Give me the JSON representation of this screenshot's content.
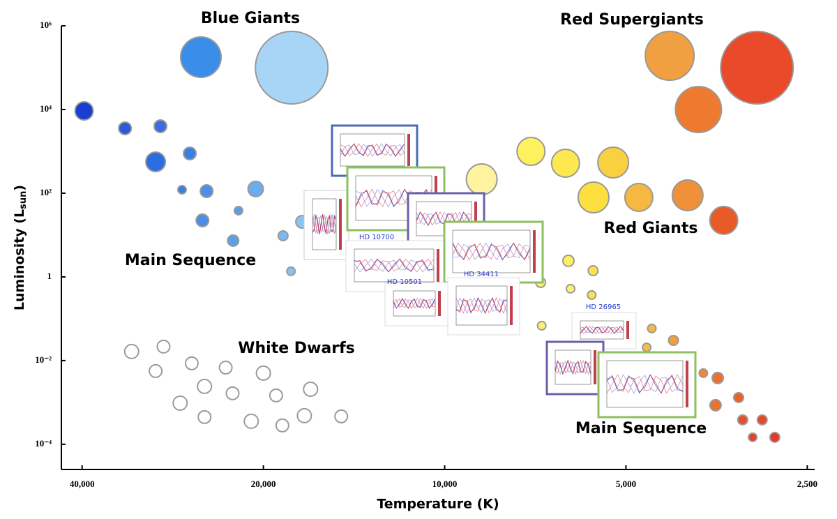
{
  "chart_data": {
    "type": "scatter",
    "x_label": "Temperature (K)",
    "y_label": {
      "text": "Luminosity (L",
      "subscript": "sun",
      "close": ")"
    },
    "xlim": [
      43300,
      2430
    ],
    "ylim": [
      2.5e-05,
      1000000
    ],
    "log_x": true,
    "log_y": true,
    "xticks": [
      {
        "value": 40000,
        "label": "40,000"
      },
      {
        "value": 20000,
        "label": "20,000"
      },
      {
        "value": 10000,
        "label": "10,000"
      },
      {
        "value": 5000,
        "label": "5,000"
      },
      {
        "value": 2500,
        "label": "2,500"
      }
    ],
    "yticks": [
      {
        "value": 1000000,
        "label": "10⁶"
      },
      {
        "value": 10000,
        "label": "10⁴"
      },
      {
        "value": 100,
        "label": "10²"
      },
      1,
      {
        "value": 0.01,
        "label": "10⁻²"
      },
      {
        "value": 0.0001,
        "label": "10⁻⁴"
      }
    ],
    "series": [
      {
        "x": [
          25400,
          17950
        ],
        "y": [
          178000,
          100000
        ],
        "sizes": [
          29,
          52
        ],
        "colors": [
          "#3a8de8",
          "#a8d4f6"
        ]
      },
      {
        "x": [
          4230,
          3030,
          3790
        ],
        "y": [
          192000,
          100000,
          10000
        ],
        "sizes": [
          35,
          52,
          33
        ],
        "colors": [
          "#f0a040",
          "#e84a2a",
          "#ee7a30"
        ]
      },
      {
        "x": [
          39700,
          33950,
          29650,
          30200,
          26500,
          27300,
          24850,
          20600,
          22000,
          25250,
          22450,
          18550,
          18000,
          17250
        ],
        "y": [
          9260,
          3550,
          3980,
          562,
          891,
          121,
          112,
          126,
          38.3,
          22.4,
          7.36,
          9.62,
          1.36,
          20.7
        ],
        "sizes": [
          13,
          9,
          9,
          14,
          9,
          6,
          9,
          11,
          6,
          9,
          8,
          7,
          6,
          9
        ],
        "colors": [
          "#1a3fd0",
          "#2a5ad8",
          "#3a6ee0",
          "#2a6ee0",
          "#3a80e0",
          "#3a7ee0",
          "#4a90e8",
          "#6aaef0",
          "#5a9ee8",
          "#4a90e8",
          "#5aa0e8",
          "#7ab8f0",
          "#8ac0f0",
          "#8ac4f0"
        ]
      },
      {
        "x": [
          7190,
          6300,
          8680,
          5250,
          5660,
          4760,
          3950,
          3440
        ],
        "y": [
          1000,
          521,
          215,
          541,
          79.4,
          79.4,
          89.1,
          22.4
        ],
        "sizes": [
          20,
          20,
          22,
          22,
          22,
          20,
          22,
          20
        ],
        "colors": [
          "#fff060",
          "#fde850",
          "#fff3a0",
          "#f8d040",
          "#fde040",
          "#f5b840",
          "#f09038",
          "#e85a28"
        ]
      },
      {
        "x": [
          6230,
          5670,
          6930,
          6180,
          5700,
          6900,
          4530,
          4170,
          4620,
          3720,
          3520,
          3250,
          3550,
          3200,
          2970,
          3080,
          2830
        ],
        "y": [
          2.42,
          1.41,
          0.736,
          0.521,
          0.369,
          0.0681,
          0.0585,
          0.0304,
          0.0207,
          0.00501,
          0.00383,
          0.00131,
          0.000858,
          0.000383,
          0.000383,
          0.000147,
          0.000147
        ],
        "sizes": [
          8,
          7,
          7,
          6,
          6,
          6,
          6,
          7,
          6,
          6,
          8,
          7,
          8,
          7,
          7,
          6,
          7
        ],
        "colors": [
          "#fff060",
          "#fde050",
          "#fff070",
          "#fff070",
          "#fde050",
          "#fff070",
          "#f5b840",
          "#f0a040",
          "#f5c040",
          "#f08838",
          "#ee7030",
          "#ea6028",
          "#ee7030",
          "#e85028",
          "#e84828",
          "#e64028",
          "#e43828"
        ]
      },
      {
        "x": [
          33100,
          29300,
          26300,
          30200,
          23100,
          20000,
          25050,
          22500,
          16700,
          27500,
          19050,
          25050,
          20950,
          18600,
          17100,
          14850
        ],
        "y": [
          0.0165,
          0.0216,
          0.00858,
          0.00562,
          0.00681,
          0.00501,
          0.00242,
          0.00165,
          0.00207,
          0.000962,
          0.00147,
          0.000447,
          0.000355,
          0.000282,
          0.000482,
          0.000464
        ],
        "sizes": [
          10,
          9,
          9,
          9,
          9,
          10,
          10,
          9,
          10,
          10,
          9,
          9,
          10,
          9,
          10,
          9
        ],
        "colors": [
          "#ffffff",
          "#ffffff",
          "#ffffff",
          "#ffffff",
          "#ffffff",
          "#ffffff",
          "#ffffff",
          "#ffffff",
          "#ffffff",
          "#ffffff",
          "#ffffff",
          "#ffffff",
          "#ffffff",
          "#ffffff",
          "#ffffff",
          "#ffffff"
        ]
      }
    ],
    "annotations": [
      "Blue Giants",
      "Red Supergiants",
      "Red Giants",
      "Main Sequence",
      "White Dwarfs",
      "Main Sequence"
    ]
  },
  "insets": [
    {
      "label": "HD 10700"
    },
    {
      "label": "HD 10501"
    },
    {
      "label": "HD 34411"
    },
    {
      "label": "HD 26965"
    }
  ]
}
